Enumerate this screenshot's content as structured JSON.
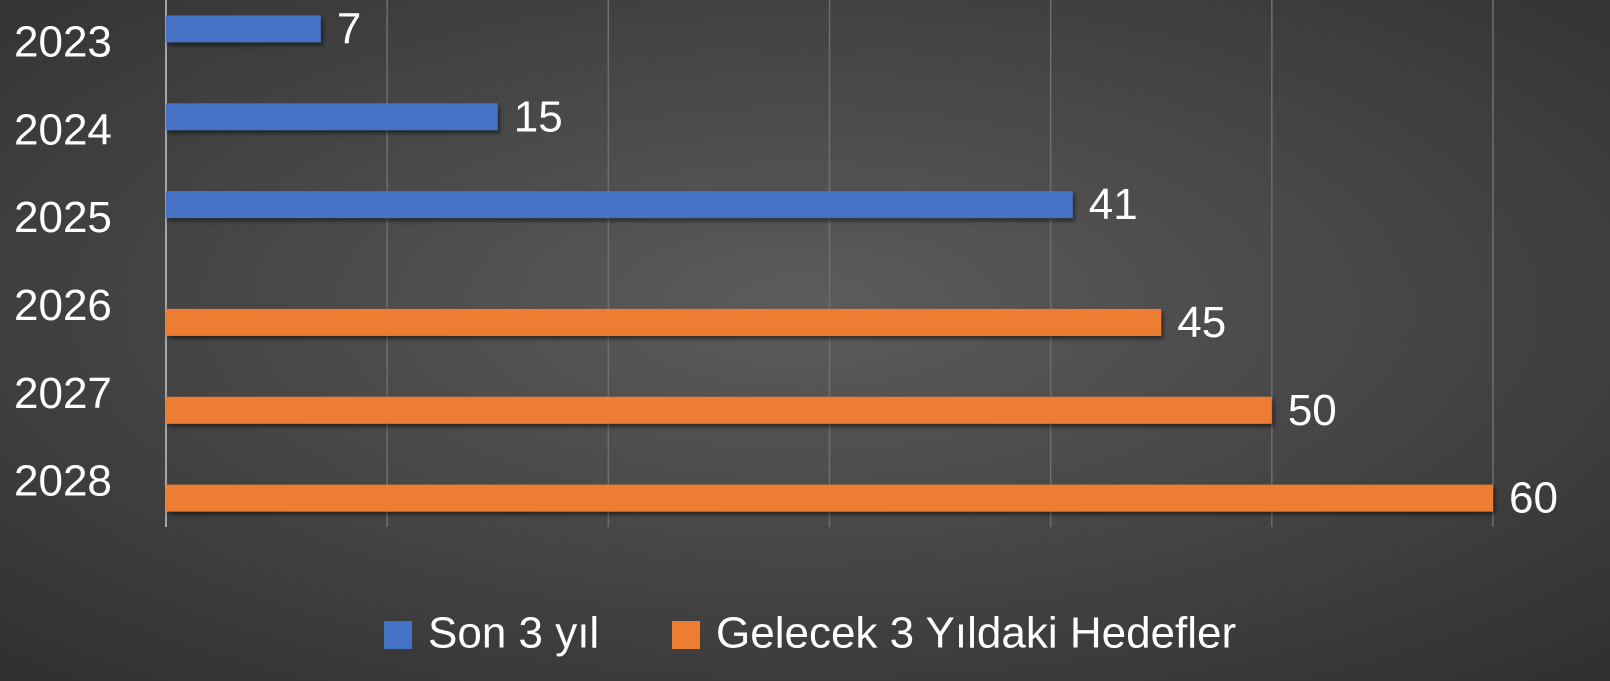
{
  "chart_data": {
    "type": "bar",
    "orientation": "horizontal",
    "categories": [
      "2023",
      "2024",
      "2025",
      "2026",
      "2027",
      "2028"
    ],
    "series": [
      {
        "name": "Son 3 yıl",
        "color": "#4472c4",
        "values": [
          7,
          15,
          41,
          null,
          null,
          null
        ]
      },
      {
        "name": "Gelecek 3 Yıldaki Hedefler",
        "color": "#ed7d31",
        "values": [
          null,
          null,
          null,
          45,
          50,
          60
        ]
      }
    ],
    "xlim": [
      0,
      60
    ],
    "xticks": [
      0,
      10,
      20,
      30,
      40,
      50,
      60
    ],
    "grid": true,
    "legend": "bottom"
  }
}
